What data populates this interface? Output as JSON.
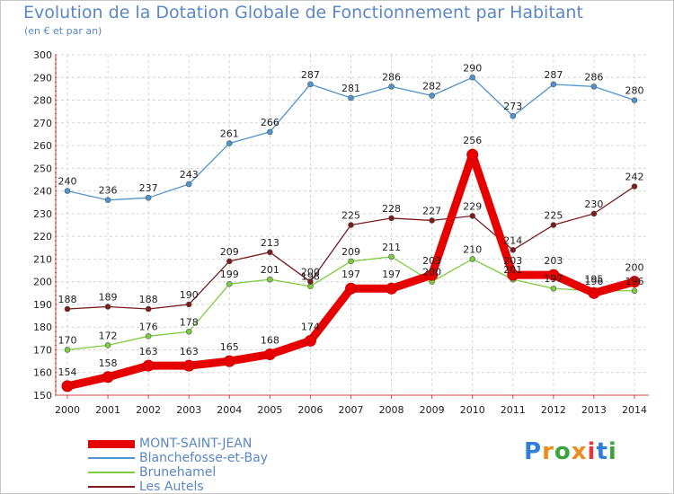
{
  "chart_data": {
    "type": "line",
    "title": "Evolution de la Dotation Globale de Fonctionnement par Habitant",
    "subtitle": "(en € et par an)",
    "x": [
      "2000",
      "2001",
      "2002",
      "2003",
      "2004",
      "2005",
      "2006",
      "2007",
      "2008",
      "2009",
      "2010",
      "2011",
      "2012",
      "2013",
      "2014"
    ],
    "ylim": [
      150,
      300
    ],
    "yticks": [
      150,
      160,
      170,
      180,
      190,
      200,
      210,
      220,
      230,
      240,
      250,
      260,
      270,
      280,
      290,
      300
    ],
    "grid": true,
    "series": [
      {
        "name": "MONT-SAINT-JEAN",
        "color": "#e60000",
        "values": [
          154,
          158,
          163,
          163,
          165,
          168,
          174,
          197,
          197,
          203,
          256,
          203,
          203,
          195,
          200
        ]
      },
      {
        "name": "Blanchefosse-et-Bay",
        "color": "#4f94cd",
        "values": [
          240,
          236,
          237,
          243,
          261,
          266,
          287,
          281,
          286,
          282,
          290,
          273,
          287,
          286,
          280
        ]
      },
      {
        "name": "Brunehamel",
        "color": "#7ccd3e",
        "values": [
          170,
          172,
          176,
          178,
          199,
          201,
          198,
          209,
          211,
          200,
          210,
          201,
          197,
          196,
          196
        ]
      },
      {
        "name": "Les Autels",
        "color": "#7a1c1c",
        "values": [
          188,
          189,
          188,
          190,
          209,
          213,
          200,
          225,
          228,
          227,
          229,
          214,
          225,
          230,
          242
        ]
      }
    ]
  },
  "legend": {
    "items": [
      "MONT-SAINT-JEAN",
      "Blanchefosse-et-Bay",
      "Brunehamel",
      "Les Autels"
    ]
  },
  "logo": {
    "letters": [
      "P",
      "r",
      "o",
      "x",
      "i",
      "t",
      "i"
    ],
    "colors": [
      "#2f7fd8",
      "#f08c1e",
      "#3aa53a",
      "#f08c1e",
      "#e13c3c",
      "#2f7fd8",
      "#3aa53a"
    ]
  }
}
